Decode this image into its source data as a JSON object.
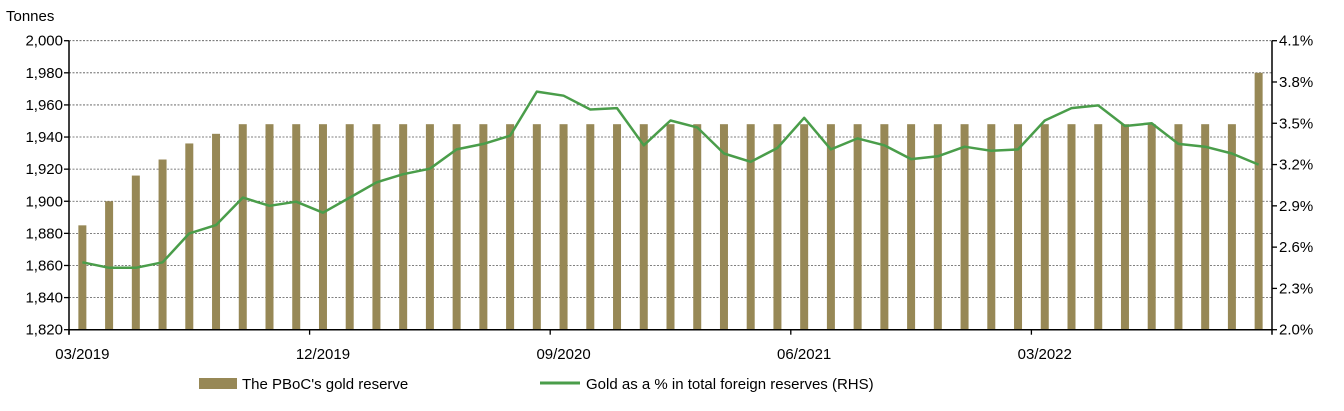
{
  "chart_data": {
    "type": "bar+line",
    "left_axis_title": "Tonnes",
    "ylim_left": [
      1820,
      2000
    ],
    "yticks_left": [
      1820,
      1840,
      1860,
      1880,
      1900,
      1920,
      1940,
      1960,
      1980,
      2000
    ],
    "ytick_labels_left": [
      "1,820",
      "1,840",
      "1,860",
      "1,880",
      "1,900",
      "1,920",
      "1,940",
      "1,960",
      "1,980",
      "2,000"
    ],
    "ylim_right": [
      2.0,
      4.1
    ],
    "yticks_right": [
      2.0,
      2.3,
      2.6,
      2.9,
      3.2,
      3.5,
      3.8,
      4.1
    ],
    "ytick_labels_right": [
      "2.0%",
      "2.3%",
      "2.6%",
      "2.9%",
      "3.2%",
      "3.5%",
      "3.8%",
      "4.1%"
    ],
    "grid": "horizontal dotted",
    "legend_position": "bottom",
    "categories": [
      "03/2019",
      "04/2019",
      "05/2019",
      "06/2019",
      "07/2019",
      "08/2019",
      "09/2019",
      "10/2019",
      "11/2019",
      "12/2019",
      "01/2020",
      "02/2020",
      "03/2020",
      "04/2020",
      "05/2020",
      "06/2020",
      "07/2020",
      "08/2020",
      "09/2020",
      "10/2020",
      "11/2020",
      "12/2020",
      "01/2021",
      "02/2021",
      "03/2021",
      "04/2021",
      "05/2021",
      "06/2021",
      "07/2021",
      "08/2021",
      "09/2021",
      "10/2021",
      "11/2021",
      "12/2021",
      "01/2022",
      "02/2022",
      "03/2022",
      "04/2022",
      "05/2022",
      "06/2022",
      "07/2022",
      "08/2022",
      "09/2022",
      "10/2022",
      "11/2022"
    ],
    "xtick_labels": [
      "03/2019",
      "12/2019",
      "09/2020",
      "06/2021",
      "03/2022"
    ],
    "series": [
      {
        "name": "The PBoC's gold reserve",
        "type": "bar",
        "axis": "left",
        "color": "#978856",
        "values": [
          1885,
          1900,
          1916,
          1926,
          1936,
          1942,
          1948,
          1948,
          1948,
          1948,
          1948,
          1948,
          1948,
          1948,
          1948,
          1948,
          1948,
          1948,
          1948,
          1948,
          1948,
          1948,
          1948,
          1948,
          1948,
          1948,
          1948,
          1948,
          1948,
          1948,
          1948,
          1948,
          1948,
          1948,
          1948,
          1948,
          1948,
          1948,
          1948,
          1948,
          1948,
          1948,
          1948,
          1948,
          1980
        ]
      },
      {
        "name": "Gold as a % in total foreign reserves (RHS)",
        "type": "line",
        "axis": "right",
        "color": "#4a9d4a",
        "values": [
          2.49,
          2.45,
          2.45,
          2.49,
          2.7,
          2.76,
          2.96,
          2.9,
          2.93,
          2.85,
          2.96,
          3.07,
          3.13,
          3.17,
          3.31,
          3.35,
          3.41,
          3.73,
          3.7,
          3.6,
          3.61,
          3.34,
          3.52,
          3.47,
          3.28,
          3.22,
          3.32,
          3.54,
          3.31,
          3.39,
          3.34,
          3.24,
          3.26,
          3.33,
          3.3,
          3.31,
          3.52,
          3.61,
          3.63,
          3.48,
          3.5,
          3.35,
          3.33,
          3.28,
          3.2
        ]
      }
    ]
  }
}
